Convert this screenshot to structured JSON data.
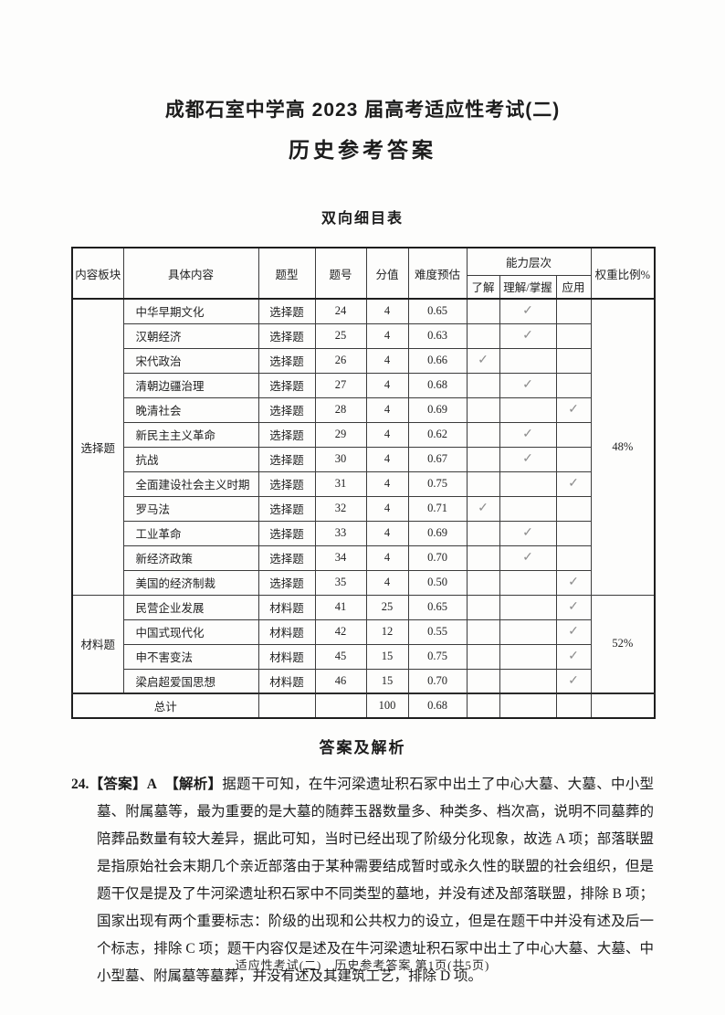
{
  "page": {
    "title": "成都石室中学高 2023 届高考适应性考试(二)",
    "subtitle": "历史参考答案",
    "footer": "适应性考试(二)　历史参考答案 第1页(共5页)"
  },
  "table": {
    "caption": "双向细目表",
    "check_glyph": "✓",
    "headers": {
      "content_block": "内容板块",
      "specific_content": "具体内容",
      "question_type": "题型",
      "question_number": "题号",
      "score": "分值",
      "difficulty": "难度预估",
      "ability_level": "能力层次",
      "know": "了解",
      "understand_master": "理解/掌握",
      "apply": "应用",
      "weight_ratio": "权重比例%"
    },
    "groups": [
      {
        "label": "选择题",
        "weight": "48%",
        "rows": [
          {
            "content": "中华早期文化",
            "type": "选择题",
            "number": "24",
            "score": "4",
            "difficulty": "0.65",
            "level": "understand"
          },
          {
            "content": "汉朝经济",
            "type": "选择题",
            "number": "25",
            "score": "4",
            "difficulty": "0.63",
            "level": "understand"
          },
          {
            "content": "宋代政治",
            "type": "选择题",
            "number": "26",
            "score": "4",
            "difficulty": "0.66",
            "level": "know"
          },
          {
            "content": "清朝边疆治理",
            "type": "选择题",
            "number": "27",
            "score": "4",
            "difficulty": "0.68",
            "level": "understand"
          },
          {
            "content": "晚清社会",
            "type": "选择题",
            "number": "28",
            "score": "4",
            "difficulty": "0.69",
            "level": "apply"
          },
          {
            "content": "新民主主义革命",
            "type": "选择题",
            "number": "29",
            "score": "4",
            "difficulty": "0.62",
            "level": "understand"
          },
          {
            "content": "抗战",
            "type": "选择题",
            "number": "30",
            "score": "4",
            "difficulty": "0.67",
            "level": "understand"
          },
          {
            "content": "全面建设社会主义时期",
            "type": "选择题",
            "number": "31",
            "score": "4",
            "difficulty": "0.75",
            "level": "apply"
          },
          {
            "content": "罗马法",
            "type": "选择题",
            "number": "32",
            "score": "4",
            "difficulty": "0.71",
            "level": "know"
          },
          {
            "content": "工业革命",
            "type": "选择题",
            "number": "33",
            "score": "4",
            "difficulty": "0.69",
            "level": "understand"
          },
          {
            "content": "新经济政策",
            "type": "选择题",
            "number": "34",
            "score": "4",
            "difficulty": "0.70",
            "level": "understand"
          },
          {
            "content": "美国的经济制裁",
            "type": "选择题",
            "number": "35",
            "score": "4",
            "difficulty": "0.50",
            "level": "apply"
          }
        ]
      },
      {
        "label": "材料题",
        "weight": "52%",
        "rows": [
          {
            "content": "民营企业发展",
            "type": "材料题",
            "number": "41",
            "score": "25",
            "difficulty": "0.65",
            "level": "apply"
          },
          {
            "content": "中国式现代化",
            "type": "材料题",
            "number": "42",
            "score": "12",
            "difficulty": "0.55",
            "level": "apply"
          },
          {
            "content": "申不害变法",
            "type": "材料题",
            "number": "45",
            "score": "15",
            "difficulty": "0.75",
            "level": "apply"
          },
          {
            "content": "梁启超爱国思想",
            "type": "材料题",
            "number": "46",
            "score": "15",
            "difficulty": "0.70",
            "level": "apply"
          }
        ]
      }
    ],
    "total": {
      "label": "总计",
      "type": "",
      "number": "",
      "score": "100",
      "difficulty": "0.68",
      "weight": ""
    }
  },
  "answers": {
    "heading": "答案及解析",
    "items": [
      {
        "number": "24.",
        "answer_label": "【答案】A",
        "analysis_label": "【解析】",
        "text": "据题干可知，在牛河梁遗址积石冢中出土了中心大墓、大墓、中小型墓、附属墓等，最为重要的是大墓的随葬玉器数量多、种类多、档次高，说明不同墓葬的陪葬品数量有较大差异，据此可知，当时已经出现了阶级分化现象，故选 A 项；部落联盟是指原始社会末期几个亲近部落由于某种需要结成暂时或永久性的联盟的社会组织，但是题干仅是提及了牛河梁遗址积石冢中不同类型的墓地，并没有述及部落联盟，排除 B 项；国家出现有两个重要标志：阶级的出现和公共权力的设立，但是在题干中并没有述及后一个标志，排除 C 项；题干内容仅是述及在牛河梁遗址积石冢中出土了中心大墓、大墓、中小型墓、附属墓等墓葬，并没有述及其建筑工艺，排除 D 项。"
      }
    ]
  }
}
